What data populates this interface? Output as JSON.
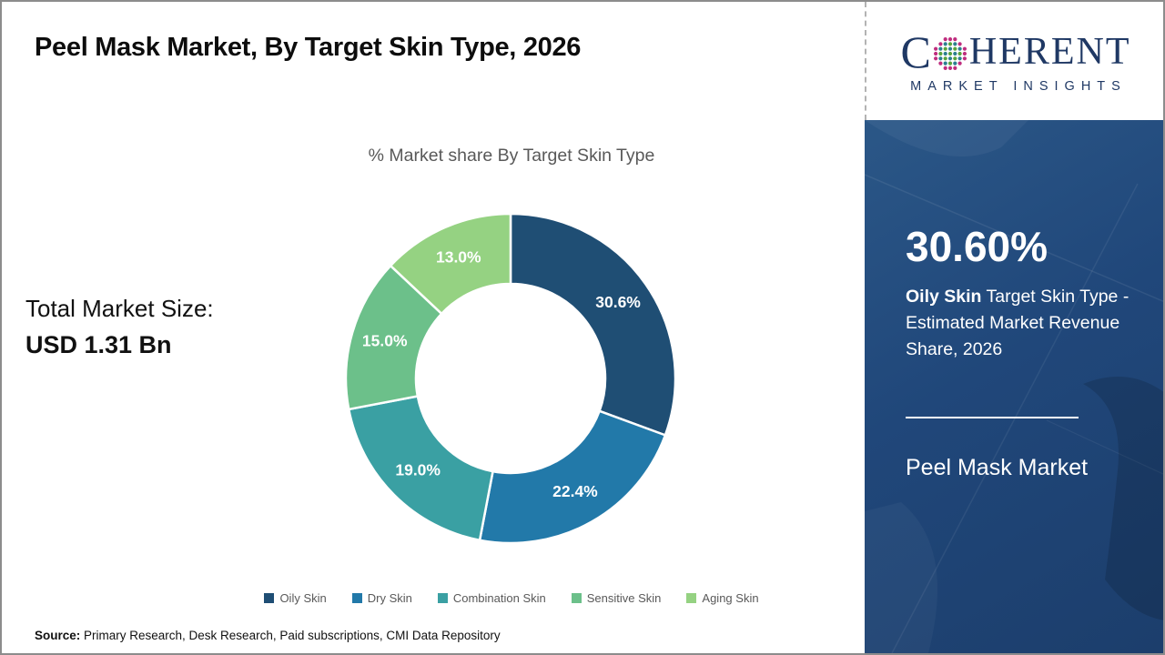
{
  "header": {
    "title": "Peel Mask Market, By Target Skin Type, 2026"
  },
  "logo": {
    "name": "Coherent Market Insights",
    "word_c": "C",
    "word_rest": "HERENT",
    "subline": "MARKET INSIGHTS",
    "brand_color": "#1f3864"
  },
  "left_stats": {
    "label": "Total Market Size:",
    "value": "USD 1.31 Bn"
  },
  "chart_data": {
    "type": "pie",
    "subtype": "donut",
    "title": "% Market share By Target Skin Type",
    "categories": [
      "Oily Skin",
      "Dry Skin",
      "Combination Skin",
      "Sensitive Skin",
      "Aging Skin"
    ],
    "values": [
      30.6,
      22.4,
      19.0,
      15.0,
      13.0
    ],
    "labels": [
      "30.6%",
      "22.4%",
      "19.0%",
      "15.0%",
      "13.0%"
    ],
    "colors": [
      "#1f4e74",
      "#2279a9",
      "#3aa0a3",
      "#6cc08a",
      "#95d282"
    ],
    "start_angle_deg": 0,
    "direction": "clockwise",
    "inner_radius_ratio": 0.575,
    "label_color": "#ffffff",
    "legend_position": "bottom"
  },
  "side_panel": {
    "stat_value": "30.60%",
    "stat_bold": "Oily Skin",
    "stat_rest": " Target Skin Type - Estimated Market Revenue Share, 2026",
    "panel_title": "Peel Mask Market",
    "panel_color": "#1e4271"
  },
  "footer": {
    "source_label": "Source:",
    "source_text": " Primary Research, Desk Research, Paid subscriptions, CMI Data Repository"
  }
}
